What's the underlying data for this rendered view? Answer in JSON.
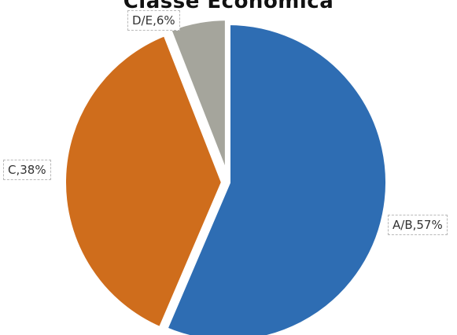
{
  "chart_data": {
    "type": "pie",
    "title": "Classe Econômica",
    "slices": [
      {
        "label": "A/B",
        "value": 57,
        "value_text": "A/B,57%",
        "color": "#2e6db3"
      },
      {
        "label": "C",
        "value": 38,
        "value_text": "C,38%",
        "color": "#cf6d1c"
      },
      {
        "label": "D/E",
        "value": 6,
        "value_text": "D/E,6%",
        "color": "#a5a59c"
      }
    ],
    "start_angle_deg": 0,
    "direction": "clockwise",
    "legend": "none",
    "data_labels": "outside"
  }
}
